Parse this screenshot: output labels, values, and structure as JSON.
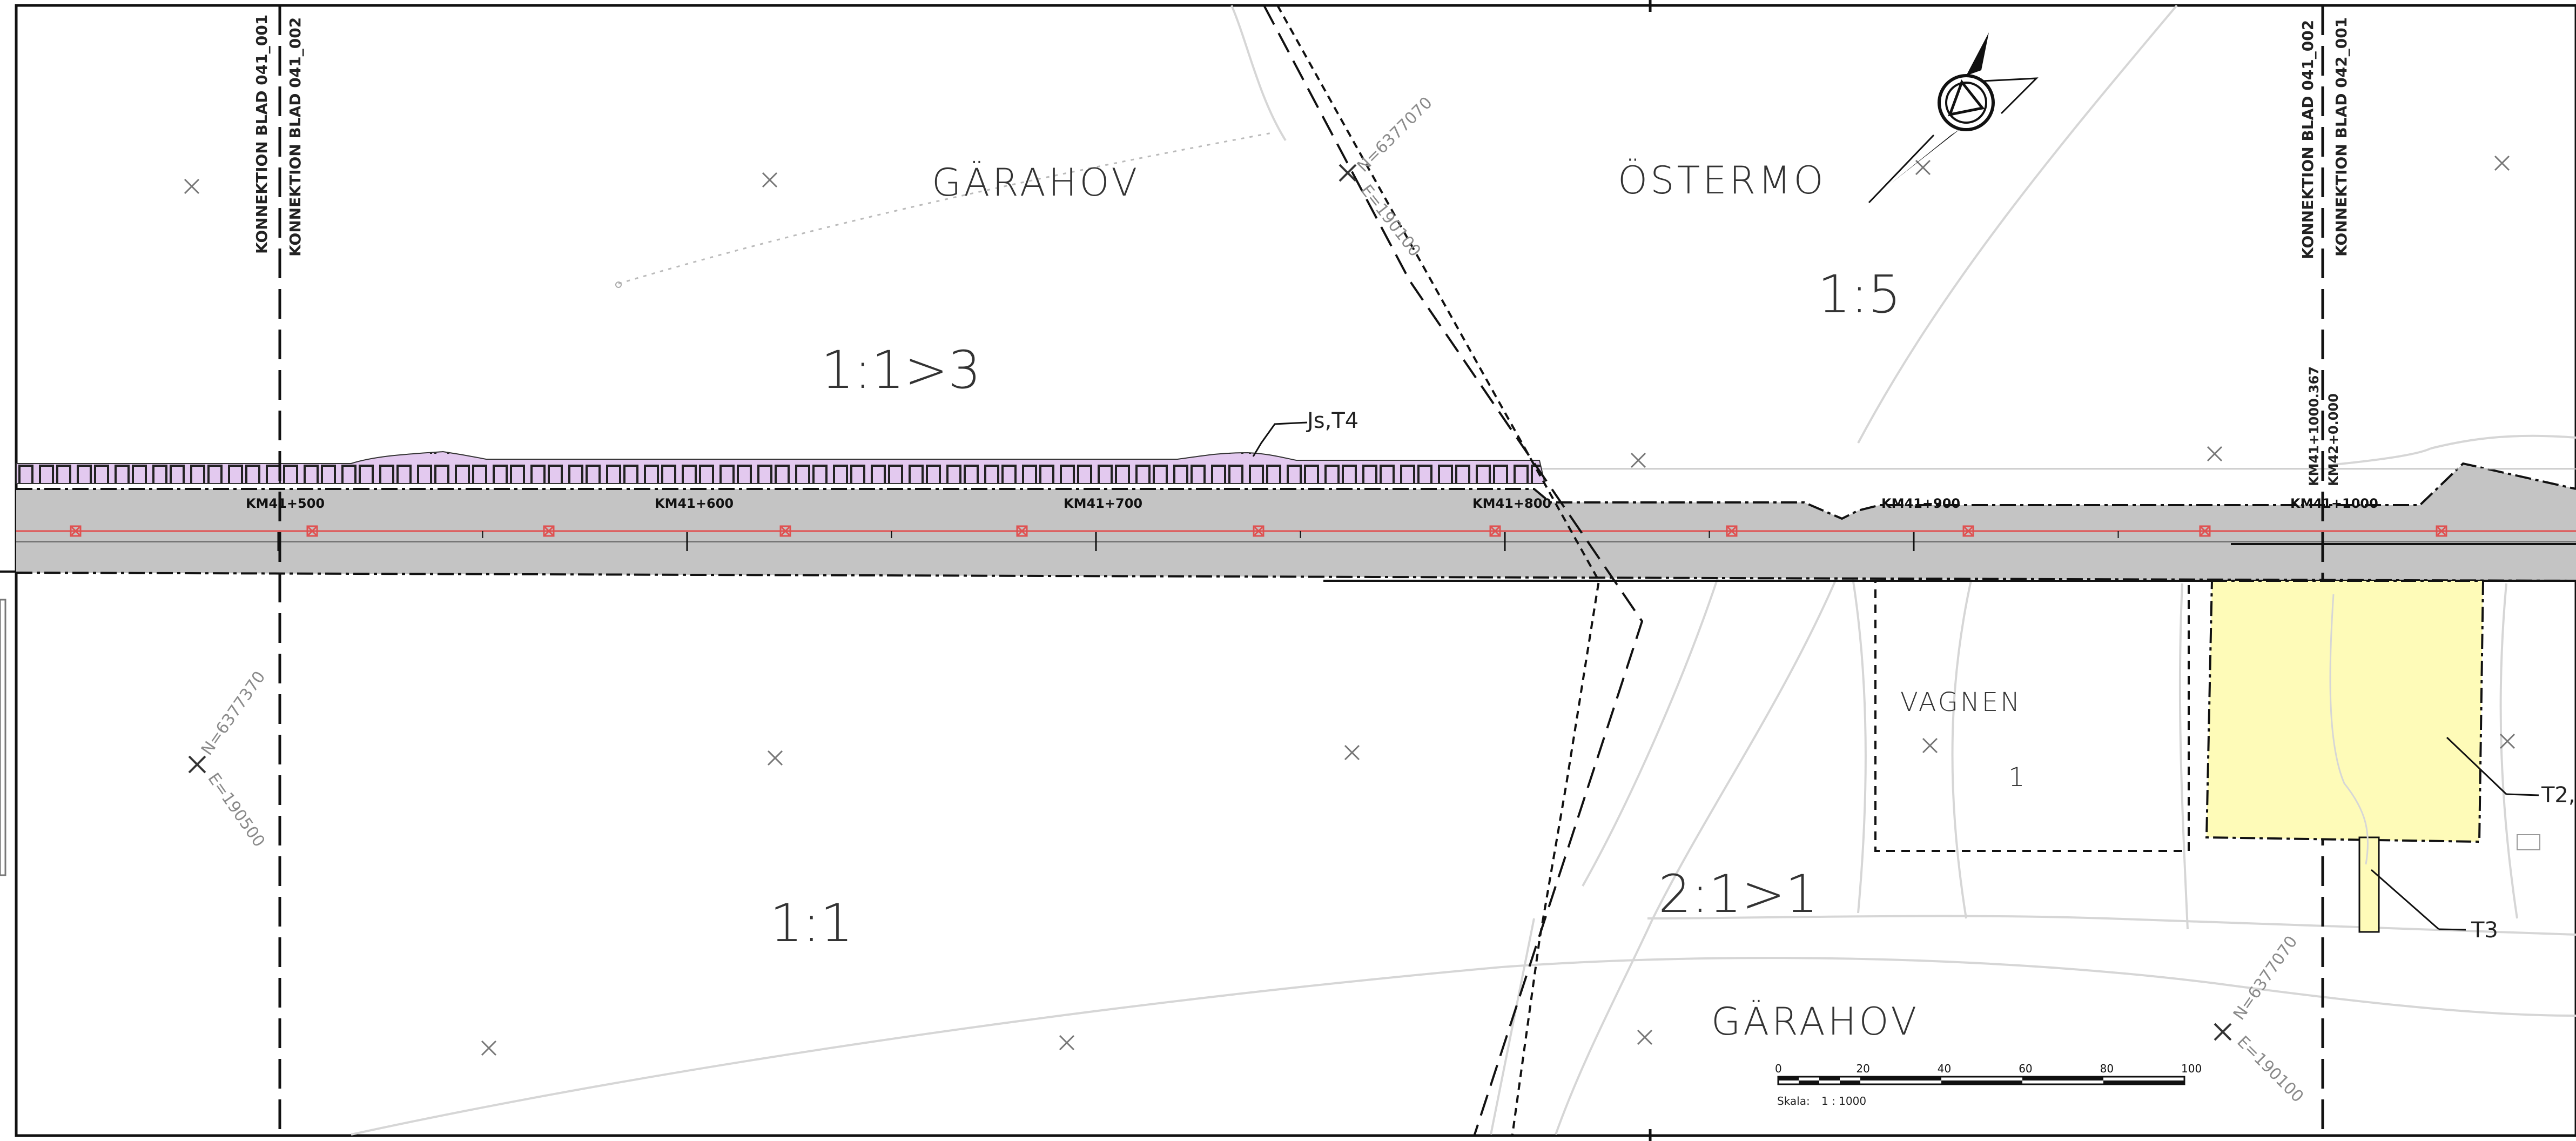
{
  "colors": {
    "road_fill": "#c4c4c4",
    "centerline": "#e05050",
    "hatch_fill": "#e3c9ef",
    "parcel_fill": "#fefbb8",
    "linework": "#111111",
    "faint_lines": "#d6d6d6",
    "grey_text": "#8a8a8a"
  },
  "map": {
    "connection_labels": {
      "left_a": "KONNEKTION BLAD 041_001",
      "left_b": "KONNEKTION BLAD 041_002",
      "right_a": "KONNEKTION BLAD 041_002",
      "right_b": "KONNEKTION BLAD 042_001"
    },
    "place_names": {
      "garahov_top": "GÄRAHOV",
      "ostermo": "ÖSTERMO",
      "vagnen": "VAGNEN",
      "garahov_bottom": "GÄRAHOV"
    },
    "parcel_ids": {
      "p_11_3": "1:1>3",
      "p_15": "1:5",
      "p_11": "1:1",
      "p_21_1": "2:1>1",
      "p_1": "1"
    },
    "coordinate_labels": {
      "n_top": "N=6377070",
      "e_top": "E=190100",
      "n_left": "N=6377370",
      "e_left": "E=190500",
      "n_bottom": "N=6377070",
      "e_bottom": "E=190100"
    },
    "stations": [
      {
        "label": "KM41+500",
        "station": 41500
      },
      {
        "label": "KM41+600",
        "station": 41600
      },
      {
        "label": "KM41+700",
        "station": 41700
      },
      {
        "label": "KM41+800",
        "station": 41800
      },
      {
        "label": "KM41+900",
        "station": 41900
      },
      {
        "label": "KM41+1000",
        "station": 42000
      }
    ],
    "station_split": {
      "line1": "KM41+1000.367",
      "line2": "KM42+0.000"
    },
    "annotations": {
      "js_t4": "Js,T4",
      "t2": "T2,",
      "t3": "T3"
    }
  },
  "scale_bar": {
    "ticks": [
      "0",
      "20",
      "40",
      "60",
      "80",
      "100"
    ],
    "label": "Skala:",
    "ratio": "1 : 1000"
  },
  "north_arrow": {
    "icon": "north-arrow-icon"
  }
}
